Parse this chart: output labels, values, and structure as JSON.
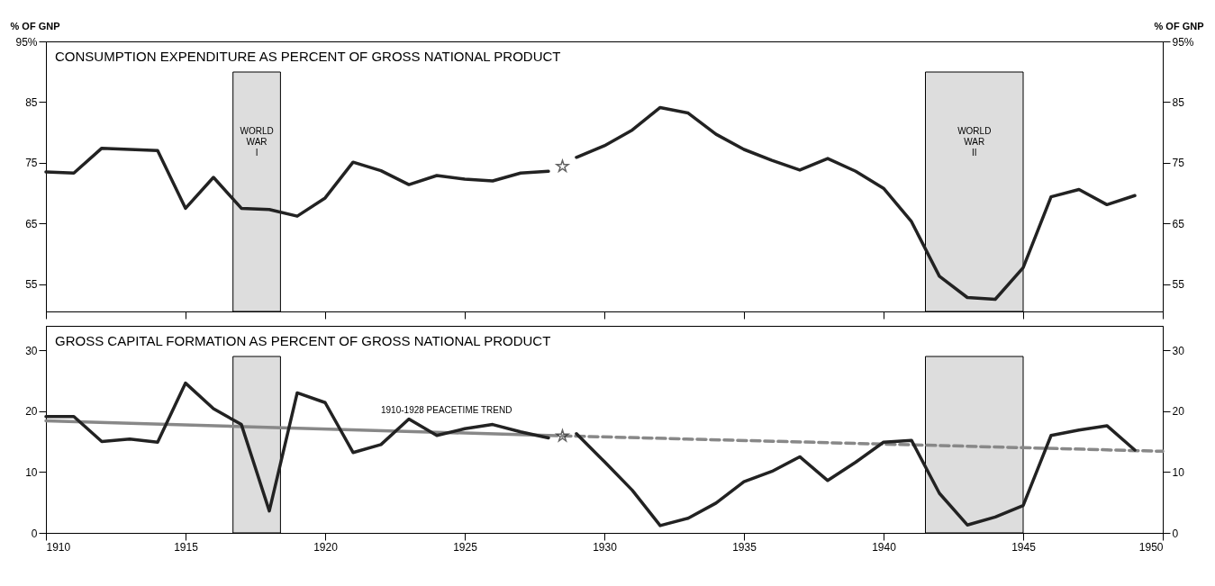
{
  "chart_data": [
    {
      "type": "line",
      "title": "CONSUMPTION EXPENDITURE AS PERCENT OF GROSS NATIONAL PRODUCT",
      "ylabel": "% OF GNP",
      "y2label": "% OF GNP",
      "xlim": [
        1910,
        1950
      ],
      "xticks": [
        1910,
        1915,
        1920,
        1925,
        1930,
        1935,
        1940,
        1945,
        1950
      ],
      "ylim": [
        50.5,
        95
      ],
      "yticks": [
        55,
        65,
        75,
        85,
        {
          "value": 95,
          "label": "95%"
        }
      ],
      "y2lim": [
        50.5,
        95
      ],
      "y2ticks": [
        55,
        65,
        75,
        85,
        {
          "value": 95,
          "label": "95%"
        }
      ],
      "tick_labels": "y",
      "grid": false,
      "bands": [
        {
          "axis": "x",
          "from": 1916.7,
          "to": 1918.4,
          "label": "WORLD WAR I",
          "color": "#dddddd"
        },
        {
          "axis": "x",
          "from": 1941.5,
          "to": 1945,
          "label": "WORLD WAR II",
          "color": "#dddddd"
        }
      ],
      "series": [
        {
          "color": "#222222",
          "x": [
            1910,
            1911,
            1912,
            1913,
            1914,
            1915,
            1916,
            1917,
            1918,
            1919,
            1920,
            1921,
            1922,
            1923,
            1924,
            1925,
            1926,
            1927,
            1928
          ],
          "values": [
            73.5,
            73.3,
            77.4,
            77.2,
            77.0,
            67.5,
            72.6,
            67.5,
            67.3,
            66.2,
            69.2,
            75.1,
            73.7,
            71.4,
            72.9,
            72.3,
            72.0,
            73.3,
            73.6
          ]
        },
        {
          "type": "scatter",
          "color": "#222222",
          "marker": "star",
          "x": [
            1928.5
          ],
          "values": [
            74.4
          ]
        },
        {
          "color": "#222222",
          "x": [
            1929,
            1930,
            1931,
            1932,
            1933,
            1934,
            1935,
            1936,
            1937,
            1938,
            1939,
            1940,
            1941,
            1942,
            1943,
            1944,
            1945,
            1946,
            1947,
            1948,
            1949
          ],
          "values": [
            75.9,
            77.8,
            80.4,
            84.1,
            83.2,
            79.7,
            77.2,
            75.4,
            73.8,
            75.7,
            73.6,
            70.8,
            65.3,
            56.3,
            52.8,
            52.5,
            57.7,
            69.4,
            70.6,
            68.1,
            69.6
          ]
        }
      ]
    },
    {
      "type": "line",
      "title": "GROSS CAPITAL FORMATION AS PERCENT OF GROSS NATIONAL PRODUCT",
      "xlim": [
        1910,
        1950
      ],
      "xticks": [
        1910,
        1915,
        1920,
        1925,
        1930,
        1935,
        1940,
        1945,
        1950
      ],
      "ylim": [
        0,
        34
      ],
      "yticks": [
        0,
        10,
        20,
        30
      ],
      "y2lim": [
        0,
        34
      ],
      "y2ticks": [
        0,
        10,
        20,
        30
      ],
      "grid": false,
      "annotations": [
        {
          "text": "1910-1928 PEACETIME TREND",
          "x": 1922,
          "y": 17.1
        }
      ],
      "bands": [
        {
          "axis": "x",
          "from": 1916.7,
          "to": 1918.4,
          "color": "#dddddd"
        },
        {
          "axis": "x",
          "from": 1941.5,
          "to": 1945,
          "color": "#dddddd"
        }
      ],
      "series": [
        {
          "color": "#888888",
          "line_style": "solid",
          "x": [
            1910,
            1928
          ],
          "values": [
            18.4,
            16.0
          ]
        },
        {
          "color": "#888888",
          "line_style": "dashed",
          "x": [
            1928,
            1950
          ],
          "values": [
            16.0,
            13.4
          ]
        },
        {
          "color": "#222222",
          "x": [
            1910,
            1911,
            1912,
            1913,
            1914,
            1915,
            1916,
            1917,
            1918,
            1919,
            1920,
            1921,
            1922,
            1923,
            1924,
            1925,
            1926,
            1927,
            1928
          ],
          "values": [
            19.1,
            19.1,
            15.0,
            15.4,
            14.9,
            24.6,
            20.4,
            17.8,
            3.6,
            23.0,
            21.4,
            13.2,
            14.5,
            18.7,
            16.0,
            17.1,
            17.8,
            16.6,
            15.6
          ]
        },
        {
          "type": "scatter",
          "color": "#222222",
          "marker": "star",
          "x": [
            1928.5
          ],
          "values": [
            15.9
          ]
        },
        {
          "color": "#222222",
          "x": [
            1929,
            1930,
            1931,
            1932,
            1933,
            1934,
            1935,
            1936,
            1937,
            1938,
            1939,
            1940,
            1941,
            1942,
            1943,
            1944,
            1945,
            1946,
            1947,
            1948,
            1949
          ],
          "values": [
            16.3,
            11.7,
            7.0,
            1.2,
            2.4,
            4.9,
            8.4,
            10.1,
            12.5,
            8.6,
            11.6,
            14.9,
            15.2,
            6.5,
            1.3,
            2.6,
            4.5,
            16.0,
            16.9,
            17.6,
            13.6
          ]
        }
      ]
    }
  ]
}
